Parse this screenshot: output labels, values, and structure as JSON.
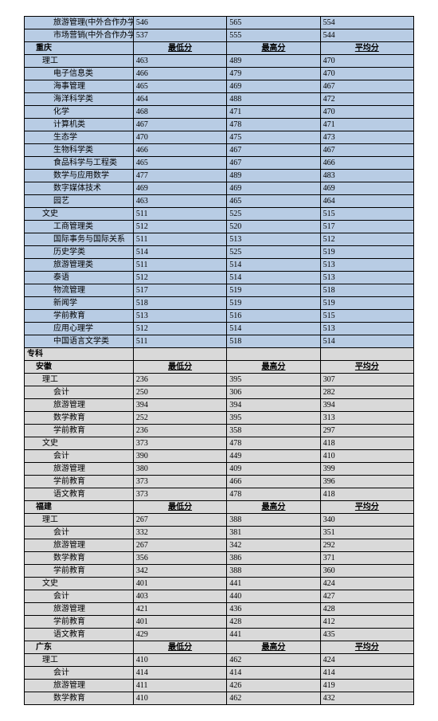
{
  "header_labels": {
    "low": "最低分",
    "high": "最高分",
    "avg": "平均分"
  },
  "section1": {
    "pre_rows": [
      {
        "name": "旅游管理(中外合作办学)",
        "low": "546",
        "high": "565",
        "avg": "554"
      },
      {
        "name": "市场营销(中外合作办学)",
        "low": "537",
        "high": "555",
        "avg": "544"
      }
    ],
    "region": "重庆",
    "group1": {
      "title": "理工",
      "low": "463",
      "high": "489",
      "avg": "470",
      "rows": [
        {
          "name": "电子信息类",
          "low": "466",
          "high": "479",
          "avg": "470"
        },
        {
          "name": "海事管理",
          "low": "465",
          "high": "469",
          "avg": "467"
        },
        {
          "name": "海洋科学类",
          "low": "464",
          "high": "488",
          "avg": "472"
        },
        {
          "name": "化学",
          "low": "468",
          "high": "471",
          "avg": "470"
        },
        {
          "name": "计算机类",
          "low": "467",
          "high": "478",
          "avg": "471"
        },
        {
          "name": "生态学",
          "low": "470",
          "high": "475",
          "avg": "473"
        },
        {
          "name": "生物科学类",
          "low": "466",
          "high": "467",
          "avg": "467"
        },
        {
          "name": "食品科学与工程类",
          "low": "465",
          "high": "467",
          "avg": "466"
        },
        {
          "name": "数学与应用数学",
          "low": "477",
          "high": "489",
          "avg": "483"
        },
        {
          "name": "数字媒体技术",
          "low": "469",
          "high": "469",
          "avg": "469"
        },
        {
          "name": "园艺",
          "low": "463",
          "high": "465",
          "avg": "464"
        }
      ]
    },
    "group2": {
      "title": "文史",
      "low": "511",
      "high": "525",
      "avg": "515",
      "rows": [
        {
          "name": "工商管理类",
          "low": "512",
          "high": "520",
          "avg": "517"
        },
        {
          "name": "国际事务与国际关系",
          "low": "511",
          "high": "513",
          "avg": "512"
        },
        {
          "name": "历史学类",
          "low": "514",
          "high": "525",
          "avg": "519"
        },
        {
          "name": "旅游管理类",
          "low": "511",
          "high": "514",
          "avg": "513"
        },
        {
          "name": "泰语",
          "low": "512",
          "high": "514",
          "avg": "513"
        },
        {
          "name": "物流管理",
          "low": "517",
          "high": "519",
          "avg": "518"
        },
        {
          "name": "新闻学",
          "low": "518",
          "high": "519",
          "avg": "519"
        },
        {
          "name": "学前教育",
          "low": "513",
          "high": "516",
          "avg": "515"
        },
        {
          "name": "应用心理学",
          "low": "512",
          "high": "514",
          "avg": "513"
        },
        {
          "name": "中国语言文学类",
          "low": "511",
          "high": "518",
          "avg": "514"
        }
      ]
    }
  },
  "section2": {
    "title": "专科",
    "regions": [
      {
        "name": "安徽",
        "groups": [
          {
            "title": "理工",
            "low": "236",
            "high": "395",
            "avg": "307",
            "rows": [
              {
                "name": "会计",
                "low": "250",
                "high": "306",
                "avg": "282"
              },
              {
                "name": "旅游管理",
                "low": "394",
                "high": "394",
                "avg": "394"
              },
              {
                "name": "数学教育",
                "low": "252",
                "high": "395",
                "avg": "313"
              },
              {
                "name": "学前教育",
                "low": "236",
                "high": "358",
                "avg": "297"
              }
            ]
          },
          {
            "title": "文史",
            "low": "373",
            "high": "478",
            "avg": "418",
            "rows": [
              {
                "name": "会计",
                "low": "390",
                "high": "449",
                "avg": "410"
              },
              {
                "name": "旅游管理",
                "low": "380",
                "high": "409",
                "avg": "399"
              },
              {
                "name": "学前教育",
                "low": "373",
                "high": "466",
                "avg": "396"
              },
              {
                "name": "语文教育",
                "low": "373",
                "high": "478",
                "avg": "418"
              }
            ]
          }
        ]
      },
      {
        "name": "福建",
        "groups": [
          {
            "title": "理工",
            "low": "267",
            "high": "388",
            "avg": "340",
            "rows": [
              {
                "name": "会计",
                "low": "332",
                "high": "381",
                "avg": "351"
              },
              {
                "name": "旅游管理",
                "low": "267",
                "high": "342",
                "avg": "292"
              },
              {
                "name": "数学教育",
                "low": "356",
                "high": "386",
                "avg": "371"
              },
              {
                "name": "学前教育",
                "low": "342",
                "high": "388",
                "avg": "360"
              }
            ]
          },
          {
            "title": "文史",
            "low": "401",
            "high": "441",
            "avg": "424",
            "rows": [
              {
                "name": "会计",
                "low": "403",
                "high": "440",
                "avg": "427"
              },
              {
                "name": "旅游管理",
                "low": "421",
                "high": "436",
                "avg": "428"
              },
              {
                "name": "学前教育",
                "low": "401",
                "high": "428",
                "avg": "412"
              },
              {
                "name": "语文教育",
                "low": "429",
                "high": "441",
                "avg": "435"
              }
            ]
          }
        ]
      },
      {
        "name": "广东",
        "groups": [
          {
            "title": "理工",
            "low": "410",
            "high": "462",
            "avg": "424",
            "rows": [
              {
                "name": "会计",
                "low": "414",
                "high": "414",
                "avg": "414"
              },
              {
                "name": "旅游管理",
                "low": "411",
                "high": "426",
                "avg": "419"
              },
              {
                "name": "数学教育",
                "low": "410",
                "high": "462",
                "avg": "432"
              }
            ]
          }
        ]
      }
    ]
  }
}
